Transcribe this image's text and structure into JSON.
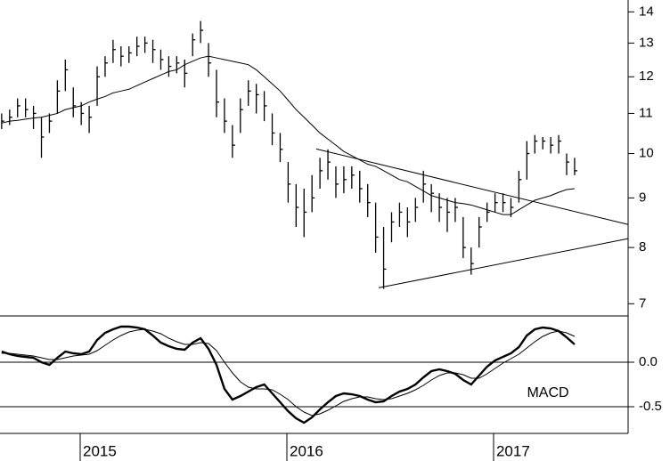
{
  "chart_data": [
    {
      "type": "ohlc",
      "log": true,
      "xlim": [
        2014.612,
        2017.651
      ],
      "ylim": [
        6.8,
        14.4
      ],
      "yticks": [
        7,
        8,
        9,
        10,
        11,
        12,
        13,
        14
      ],
      "color": "#000000",
      "x": [
        2014.62,
        2014.6585,
        2014.697,
        2014.7355,
        2014.774,
        2014.8125,
        2014.851,
        2014.8895,
        2014.928,
        2014.9665,
        2015.005,
        2015.0435,
        2015.082,
        2015.1205,
        2015.159,
        2015.1975,
        2015.236,
        2015.2745,
        2015.313,
        2015.3515,
        2015.39,
        2015.4285,
        2015.467,
        2015.5055,
        2015.544,
        2015.5825,
        2015.621,
        2015.6595,
        2015.698,
        2015.7365,
        2015.775,
        2015.8135,
        2015.852,
        2015.8905,
        2015.929,
        2015.9675,
        2016.006,
        2016.0445,
        2016.083,
        2016.1215,
        2016.16,
        2016.1985,
        2016.237,
        2016.2755,
        2016.314,
        2016.3525,
        2016.391,
        2016.4295,
        2016.468,
        2016.5065,
        2016.545,
        2016.5835,
        2016.622,
        2016.6605,
        2016.699,
        2016.7375,
        2016.776,
        2016.8145,
        2016.853,
        2016.8915,
        2016.93,
        2016.9685,
        2017.007,
        2017.0455,
        2017.084,
        2017.1225,
        2017.161,
        2017.1995,
        2017.238,
        2017.2765,
        2017.315,
        2017.3535,
        2017.392
      ],
      "high": [
        11.0,
        11.1,
        11.4,
        11.4,
        11.2,
        10.9,
        11.0,
        11.9,
        12.5,
        11.7,
        11.3,
        11.2,
        12.3,
        12.6,
        13.1,
        12.9,
        12.9,
        13.2,
        13.2,
        13.1,
        12.8,
        12.6,
        12.6,
        12.5,
        13.3,
        13.7,
        13.0,
        12.2,
        11.4,
        10.7,
        11.4,
        11.9,
        11.8,
        11.6,
        11.0,
        10.5,
        9.8,
        9.3,
        9.2,
        9.5,
        9.9,
        10.1,
        9.7,
        9.7,
        9.7,
        9.6,
        9.3,
        8.9,
        8.4,
        8.7,
        8.9,
        8.8,
        9.0,
        9.6,
        9.3,
        9.1,
        9.0,
        9.0,
        8.6,
        8.0,
        8.6,
        8.9,
        9.1,
        9.1,
        9.0,
        9.6,
        10.3,
        10.45,
        10.4,
        10.4,
        10.45,
        10.0,
        9.9
      ],
      "low": [
        10.6,
        10.7,
        10.9,
        10.9,
        10.6,
        9.9,
        10.5,
        11.0,
        11.6,
        10.9,
        10.7,
        10.5,
        11.2,
        12.0,
        12.4,
        12.3,
        12.4,
        12.6,
        12.7,
        12.4,
        12.2,
        12.0,
        12.1,
        11.7,
        12.6,
        13.0,
        12.0,
        10.9,
        10.5,
        9.9,
        10.5,
        11.2,
        11.0,
        10.8,
        10.2,
        9.8,
        8.9,
        8.4,
        8.2,
        8.7,
        9.2,
        9.4,
        9.0,
        9.1,
        9.2,
        8.9,
        8.6,
        7.9,
        7.25,
        8.1,
        8.4,
        8.2,
        8.5,
        8.9,
        8.7,
        8.5,
        8.3,
        8.5,
        7.8,
        7.5,
        8.0,
        8.5,
        8.7,
        8.7,
        8.6,
        8.9,
        9.4,
        10.0,
        10.1,
        10.0,
        10.0,
        9.5,
        9.5
      ],
      "close": [
        10.8,
        10.9,
        11.2,
        11.1,
        11.0,
        10.4,
        10.8,
        11.6,
        12.2,
        11.2,
        11.0,
        10.9,
        12.0,
        12.4,
        12.8,
        12.6,
        12.7,
        12.9,
        13.0,
        12.8,
        12.5,
        12.3,
        12.4,
        12.1,
        13.1,
        13.4,
        12.4,
        11.3,
        10.8,
        10.2,
        11.1,
        11.6,
        11.5,
        11.2,
        10.5,
        10.1,
        9.3,
        8.8,
        8.7,
        9.0,
        9.6,
        9.8,
        9.3,
        9.4,
        9.5,
        9.2,
        8.9,
        8.2,
        7.6,
        8.5,
        8.7,
        8.5,
        8.8,
        9.3,
        9.1,
        8.8,
        8.7,
        8.8,
        8.0,
        7.7,
        8.4,
        8.7,
        8.9,
        8.9,
        8.8,
        9.4,
        10.0,
        10.3,
        10.3,
        10.2,
        10.3,
        9.8,
        9.6
      ],
      "series": [
        {
          "color": "#000000",
          "values": [
            10.75,
            10.8,
            10.82,
            10.85,
            10.88,
            10.9,
            10.95,
            11.0,
            11.1,
            11.15,
            11.2,
            11.3,
            11.38,
            11.45,
            11.55,
            11.6,
            11.65,
            11.75,
            11.85,
            11.95,
            12.05,
            12.15,
            12.2,
            12.35,
            12.45,
            12.55,
            12.6,
            12.55,
            12.5,
            12.45,
            12.4,
            12.35,
            12.2,
            12.0,
            11.8,
            11.6,
            11.35,
            11.1,
            10.9,
            10.7,
            10.5,
            10.35,
            10.2,
            10.05,
            9.95,
            9.85,
            9.75,
            9.7,
            9.6,
            9.5,
            9.4,
            9.35,
            9.25,
            9.15,
            9.05,
            9.0,
            8.95,
            8.9,
            8.88,
            8.85,
            8.8,
            8.75,
            8.7,
            8.65,
            8.65,
            8.75,
            8.85,
            8.95,
            9.0,
            9.05,
            9.12,
            9.18,
            9.2
          ]
        }
      ],
      "trendlines": [
        {
          "x": [
            2016.142,
            2017.651
          ],
          "y": [
            10.11,
            8.45
          ]
        },
        {
          "x": [
            2016.444,
            2017.651
          ],
          "y": [
            7.27,
            8.17
          ]
        }
      ]
    },
    {
      "type": "line",
      "label": "MACD",
      "xlim": [
        2014.612,
        2017.651
      ],
      "ylim": [
        -0.8,
        0.52
      ],
      "yticks": [
        -0.5,
        {
          "value": 0,
          "label": "0.0"
        }
      ],
      "xticks": [
        2015,
        2016,
        2017
      ],
      "grid": true,
      "x": [
        2014.62,
        2014.6585,
        2014.697,
        2014.7355,
        2014.774,
        2014.8125,
        2014.851,
        2014.8895,
        2014.928,
        2014.9665,
        2015.005,
        2015.0435,
        2015.082,
        2015.1205,
        2015.159,
        2015.1975,
        2015.236,
        2015.2745,
        2015.313,
        2015.3515,
        2015.39,
        2015.4285,
        2015.467,
        2015.5055,
        2015.544,
        2015.5825,
        2015.621,
        2015.6595,
        2015.698,
        2015.7365,
        2015.775,
        2015.8135,
        2015.852,
        2015.8905,
        2015.929,
        2015.9675,
        2016.006,
        2016.0445,
        2016.083,
        2016.1215,
        2016.16,
        2016.1985,
        2016.237,
        2016.2755,
        2016.314,
        2016.3525,
        2016.391,
        2016.4295,
        2016.468,
        2016.5065,
        2016.545,
        2016.5835,
        2016.622,
        2016.6605,
        2016.699,
        2016.7375,
        2016.776,
        2016.8145,
        2016.853,
        2016.8915,
        2016.93,
        2016.9685,
        2017.007,
        2017.0455,
        2017.084,
        2017.1225,
        2017.161,
        2017.1995,
        2017.238,
        2017.2765,
        2017.315,
        2017.3535,
        2017.392
      ],
      "series": [
        {
          "color": "#000000",
          "values": [
            0.12,
            0.09,
            0.07,
            0.06,
            0.05,
            0.0,
            -0.03,
            0.05,
            0.12,
            0.1,
            0.09,
            0.12,
            0.25,
            0.33,
            0.37,
            0.4,
            0.4,
            0.39,
            0.37,
            0.3,
            0.22,
            0.18,
            0.15,
            0.14,
            0.22,
            0.27,
            0.15,
            -0.03,
            -0.3,
            -0.42,
            -0.38,
            -0.33,
            -0.28,
            -0.25,
            -0.35,
            -0.45,
            -0.55,
            -0.63,
            -0.68,
            -0.62,
            -0.53,
            -0.45,
            -0.38,
            -0.35,
            -0.36,
            -0.38,
            -0.42,
            -0.45,
            -0.44,
            -0.38,
            -0.33,
            -0.3,
            -0.25,
            -0.17,
            -0.1,
            -0.08,
            -0.1,
            -0.13,
            -0.2,
            -0.25,
            -0.15,
            -0.05,
            0.02,
            0.06,
            0.1,
            0.17,
            0.3,
            0.37,
            0.39,
            0.38,
            0.35,
            0.28,
            0.2
          ]
        },
        {
          "color": "#000000",
          "values": [
            0.1,
            0.1,
            0.09,
            0.08,
            0.07,
            0.05,
            0.03,
            0.03,
            0.05,
            0.07,
            0.08,
            0.09,
            0.13,
            0.19,
            0.25,
            0.3,
            0.34,
            0.36,
            0.37,
            0.35,
            0.32,
            0.27,
            0.23,
            0.2,
            0.2,
            0.22,
            0.21,
            0.13,
            0.0,
            -0.12,
            -0.22,
            -0.28,
            -0.3,
            -0.3,
            -0.31,
            -0.36,
            -0.42,
            -0.5,
            -0.56,
            -0.6,
            -0.58,
            -0.54,
            -0.49,
            -0.44,
            -0.41,
            -0.39,
            -0.39,
            -0.41,
            -0.42,
            -0.41,
            -0.38,
            -0.35,
            -0.31,
            -0.26,
            -0.2,
            -0.15,
            -0.12,
            -0.12,
            -0.14,
            -0.18,
            -0.18,
            -0.13,
            -0.07,
            -0.01,
            0.04,
            0.09,
            0.16,
            0.23,
            0.29,
            0.33,
            0.35,
            0.33,
            0.29
          ]
        }
      ]
    }
  ]
}
